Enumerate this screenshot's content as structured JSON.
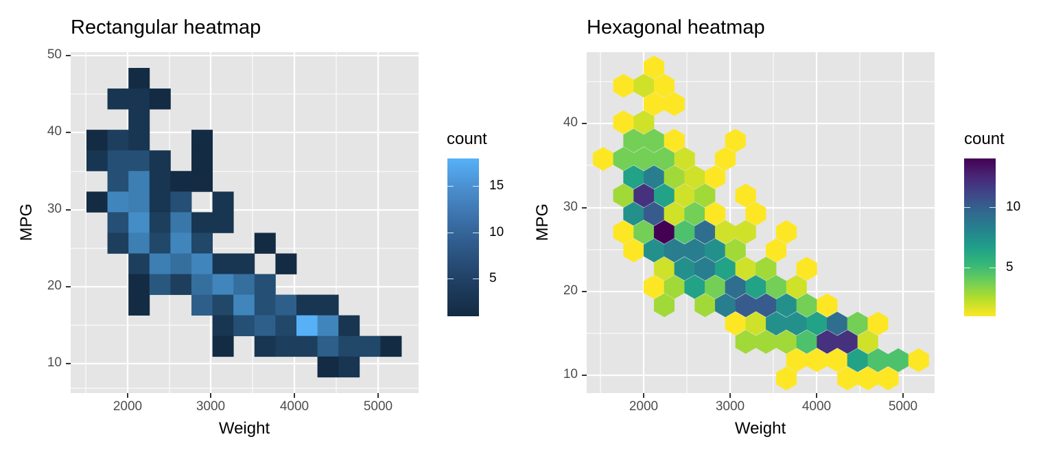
{
  "charts": [
    {
      "id": "rect",
      "title": "Rectangular heatmap",
      "xlabel": "Weight",
      "ylabel": "MPG",
      "legend_title": "count",
      "x_ticks": [
        "2000",
        "3000",
        "4000",
        "5000"
      ],
      "y_ticks": [
        "50",
        "40",
        "30",
        "20",
        "10"
      ],
      "legend_ticks": [
        "15",
        "10",
        "5"
      ]
    },
    {
      "id": "hex",
      "title": "Hexagonal heatmap",
      "xlabel": "Weight",
      "ylabel": "MPG",
      "legend_title": "count",
      "x_ticks": [
        "2000",
        "3000",
        "4000",
        "5000"
      ],
      "y_ticks": [
        "40",
        "30",
        "20",
        "10"
      ],
      "legend_ticks": [
        "10",
        "5"
      ]
    }
  ],
  "colors": {
    "panel_bg": "#e5e5e5",
    "grid": "#ffffff",
    "rect_low": "#132b43",
    "rect_high": "#56b1f7",
    "viridis": [
      "#fde725",
      "#b5de2b",
      "#6ece58",
      "#35b779",
      "#1f9e89",
      "#26828e",
      "#31688e",
      "#3e4989",
      "#482878",
      "#440154"
    ]
  },
  "chart_data": [
    {
      "type": "heatmap",
      "title": "Rectangular heatmap",
      "xlabel": "Weight",
      "ylabel": "MPG",
      "xlim": [
        1350,
        5500
      ],
      "ylim": [
        6.5,
        50.5
      ],
      "x_ticks": [
        2000,
        3000,
        4000,
        5000
      ],
      "y_ticks": [
        10,
        20,
        30,
        40,
        50
      ],
      "grid": true,
      "legend": {
        "title": "count",
        "position": "right",
        "range": [
          1,
          18
        ],
        "ticks": [
          5,
          10,
          15
        ],
        "colors": [
          "#132b43",
          "#56b1f7"
        ]
      },
      "bin_width": [
        250,
        2.67
      ],
      "note": "cells: [col, row, count] — col 0 centered at Weight≈1625, step 250; row 0 centered at MPG≈46.7, step -2.67",
      "cells": [
        [
          2,
          0,
          1
        ],
        [
          1,
          1,
          2
        ],
        [
          2,
          1,
          2
        ],
        [
          3,
          1,
          1
        ],
        [
          2,
          2,
          2
        ],
        [
          0,
          3,
          1
        ],
        [
          1,
          3,
          3
        ],
        [
          2,
          3,
          2
        ],
        [
          5,
          3,
          1
        ],
        [
          0,
          4,
          2
        ],
        [
          1,
          4,
          5
        ],
        [
          2,
          4,
          5
        ],
        [
          3,
          4,
          2
        ],
        [
          5,
          4,
          1
        ],
        [
          1,
          5,
          5
        ],
        [
          2,
          5,
          11
        ],
        [
          3,
          5,
          2
        ],
        [
          4,
          5,
          1
        ],
        [
          5,
          5,
          1
        ],
        [
          0,
          6,
          1
        ],
        [
          1,
          6,
          12
        ],
        [
          2,
          6,
          11
        ],
        [
          3,
          6,
          2
        ],
        [
          4,
          6,
          5
        ],
        [
          6,
          6,
          2
        ],
        [
          1,
          7,
          5
        ],
        [
          2,
          7,
          13
        ],
        [
          3,
          7,
          3
        ],
        [
          4,
          7,
          10
        ],
        [
          5,
          7,
          2
        ],
        [
          6,
          7,
          2
        ],
        [
          1,
          8,
          3
        ],
        [
          2,
          8,
          11
        ],
        [
          3,
          8,
          4
        ],
        [
          4,
          8,
          12
        ],
        [
          5,
          8,
          4
        ],
        [
          8,
          8,
          1
        ],
        [
          2,
          9,
          3
        ],
        [
          3,
          9,
          11
        ],
        [
          4,
          9,
          9
        ],
        [
          5,
          9,
          12
        ],
        [
          6,
          9,
          2
        ],
        [
          7,
          9,
          2
        ],
        [
          9,
          9,
          1
        ],
        [
          2,
          10,
          1
        ],
        [
          3,
          10,
          6
        ],
        [
          4,
          10,
          3
        ],
        [
          5,
          10,
          9
        ],
        [
          6,
          10,
          12
        ],
        [
          7,
          10,
          9
        ],
        [
          8,
          10,
          5
        ],
        [
          2,
          11,
          1
        ],
        [
          5,
          11,
          7
        ],
        [
          6,
          11,
          4
        ],
        [
          7,
          11,
          12
        ],
        [
          8,
          11,
          5
        ],
        [
          9,
          11,
          7
        ],
        [
          10,
          11,
          2
        ],
        [
          11,
          11,
          2
        ],
        [
          6,
          12,
          2
        ],
        [
          7,
          12,
          5
        ],
        [
          8,
          12,
          7
        ],
        [
          9,
          12,
          4
        ],
        [
          10,
          12,
          18
        ],
        [
          11,
          12,
          12
        ],
        [
          12,
          12,
          2
        ],
        [
          6,
          13,
          1
        ],
        [
          8,
          13,
          2
        ],
        [
          9,
          13,
          3
        ],
        [
          10,
          13,
          3
        ],
        [
          11,
          13,
          7
        ],
        [
          12,
          13,
          4
        ],
        [
          13,
          13,
          4
        ],
        [
          14,
          13,
          1
        ],
        [
          11,
          14,
          1
        ],
        [
          12,
          14,
          2
        ]
      ]
    },
    {
      "type": "heatmap",
      "title": "Hexagonal heatmap",
      "xlabel": "Weight",
      "ylabel": "MPG",
      "xlim": [
        1350,
        5400
      ],
      "ylim": [
        8,
        49
      ],
      "x_ticks": [
        2000,
        3000,
        4000,
        5000
      ],
      "y_ticks": [
        10,
        20,
        30,
        40
      ],
      "grid": true,
      "legend": {
        "title": "count",
        "position": "right",
        "range": [
          1,
          15
        ],
        "ticks": [
          5,
          10
        ],
        "colormap": "viridis (reversed: low=yellow, high=purple)"
      },
      "note": "hexes: [row, k, count] — row 0 at MPG≈47, step -2.18; even rows x = 1620 + 235.6k, odd rows x = 1503 + 235.6k (Weight)",
      "hexes": [
        [
          0,
          2,
          1
        ],
        [
          1,
          1,
          1
        ],
        [
          1,
          2,
          2
        ],
        [
          1,
          3,
          1
        ],
        [
          2,
          2,
          1
        ],
        [
          2,
          3,
          1
        ],
        [
          3,
          1,
          1
        ],
        [
          3,
          2,
          2
        ],
        [
          4,
          1,
          4
        ],
        [
          4,
          2,
          4
        ],
        [
          4,
          3,
          1
        ],
        [
          4,
          6,
          1
        ],
        [
          5,
          0,
          1
        ],
        [
          5,
          1,
          4
        ],
        [
          5,
          2,
          4
        ],
        [
          5,
          3,
          4
        ],
        [
          5,
          4,
          2
        ],
        [
          5,
          6,
          1
        ],
        [
          6,
          1,
          7
        ],
        [
          6,
          2,
          9
        ],
        [
          6,
          3,
          3
        ],
        [
          6,
          4,
          2
        ],
        [
          6,
          5,
          1
        ],
        [
          7,
          1,
          3
        ],
        [
          7,
          2,
          13
        ],
        [
          7,
          3,
          7
        ],
        [
          7,
          4,
          2
        ],
        [
          7,
          5,
          3
        ],
        [
          7,
          7,
          1
        ],
        [
          8,
          1,
          8
        ],
        [
          8,
          2,
          11
        ],
        [
          8,
          3,
          2
        ],
        [
          8,
          4,
          4
        ],
        [
          8,
          5,
          1
        ],
        [
          8,
          7,
          1
        ],
        [
          9,
          1,
          1
        ],
        [
          9,
          2,
          4
        ],
        [
          9,
          3,
          15
        ],
        [
          9,
          4,
          5
        ],
        [
          9,
          5,
          10
        ],
        [
          9,
          6,
          2
        ],
        [
          9,
          7,
          2
        ],
        [
          9,
          9,
          1
        ],
        [
          10,
          1,
          1
        ],
        [
          10,
          2,
          8
        ],
        [
          10,
          3,
          9
        ],
        [
          10,
          4,
          9
        ],
        [
          10,
          5,
          8
        ],
        [
          10,
          6,
          3
        ],
        [
          10,
          8,
          1
        ],
        [
          11,
          3,
          2
        ],
        [
          11,
          4,
          8
        ],
        [
          11,
          5,
          9
        ],
        [
          11,
          6,
          7
        ],
        [
          11,
          7,
          2
        ],
        [
          11,
          8,
          3
        ],
        [
          11,
          10,
          1
        ],
        [
          12,
          2,
          1
        ],
        [
          12,
          3,
          3
        ],
        [
          12,
          4,
          7
        ],
        [
          12,
          5,
          4
        ],
        [
          12,
          6,
          10
        ],
        [
          12,
          7,
          7
        ],
        [
          12,
          8,
          4
        ],
        [
          12,
          9,
          2
        ],
        [
          13,
          3,
          3
        ],
        [
          13,
          5,
          3
        ],
        [
          13,
          6,
          9
        ],
        [
          13,
          7,
          11
        ],
        [
          13,
          8,
          11
        ],
        [
          13,
          9,
          8
        ],
        [
          13,
          10,
          4
        ],
        [
          13,
          11,
          1
        ],
        [
          14,
          6,
          1
        ],
        [
          14,
          7,
          2
        ],
        [
          14,
          8,
          8
        ],
        [
          14,
          9,
          8
        ],
        [
          14,
          10,
          7
        ],
        [
          14,
          11,
          10
        ],
        [
          14,
          12,
          4
        ],
        [
          14,
          13,
          1
        ],
        [
          15,
          7,
          3
        ],
        [
          15,
          8,
          3
        ],
        [
          15,
          9,
          3
        ],
        [
          15,
          10,
          5
        ],
        [
          15,
          11,
          13
        ],
        [
          15,
          12,
          13
        ],
        [
          15,
          13,
          2
        ],
        [
          16,
          9,
          1
        ],
        [
          16,
          10,
          1
        ],
        [
          16,
          11,
          1
        ],
        [
          16,
          12,
          7
        ],
        [
          16,
          13,
          5
        ],
        [
          16,
          14,
          5
        ],
        [
          16,
          15,
          1
        ],
        [
          17,
          9,
          1
        ],
        [
          17,
          12,
          1
        ],
        [
          17,
          13,
          1
        ],
        [
          17,
          14,
          1
        ]
      ]
    }
  ]
}
